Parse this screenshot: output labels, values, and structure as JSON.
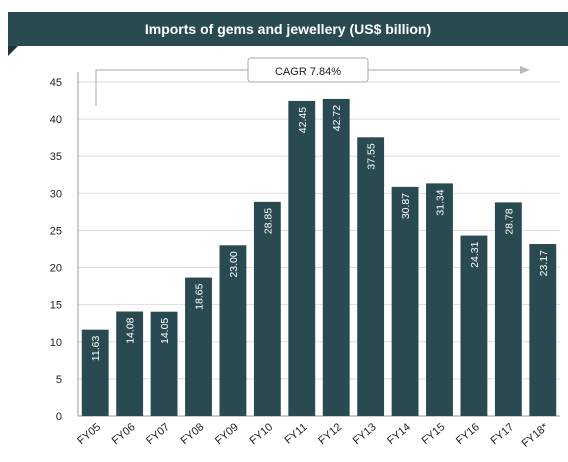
{
  "chart_data": {
    "type": "bar",
    "title": "Imports of gems and jewellery (US$ billion)",
    "categories": [
      "FY05",
      "FY06",
      "FY07",
      "FY08",
      "FY09",
      "FY10",
      "FY11",
      "FY12",
      "FY13",
      "FY14",
      "FY15",
      "FY16",
      "FY17",
      "FY18*"
    ],
    "values": [
      11.63,
      14.08,
      14.05,
      18.65,
      23.0,
      28.85,
      42.45,
      42.72,
      37.55,
      30.87,
      31.34,
      24.31,
      28.78,
      23.17
    ],
    "value_labels": [
      "11.63",
      "14.08",
      "14.05",
      "18.65",
      "23.00",
      "28.85",
      "42.45",
      "42.72",
      "37.55",
      "30.87",
      "31.34",
      "24.31",
      "28.78",
      "23.17"
    ],
    "y_ticks": [
      0,
      5,
      10,
      15,
      20,
      25,
      30,
      35,
      40,
      45
    ],
    "ylim": [
      0,
      45
    ],
    "xlabel": "",
    "ylabel": "",
    "grid": true,
    "annotation": "CAGR 7.84%",
    "colors": {
      "bar": "#2a4a52",
      "title_bg": "#2a4a52",
      "grid": "#dddddd",
      "arrow": "#bbbbbb"
    }
  }
}
